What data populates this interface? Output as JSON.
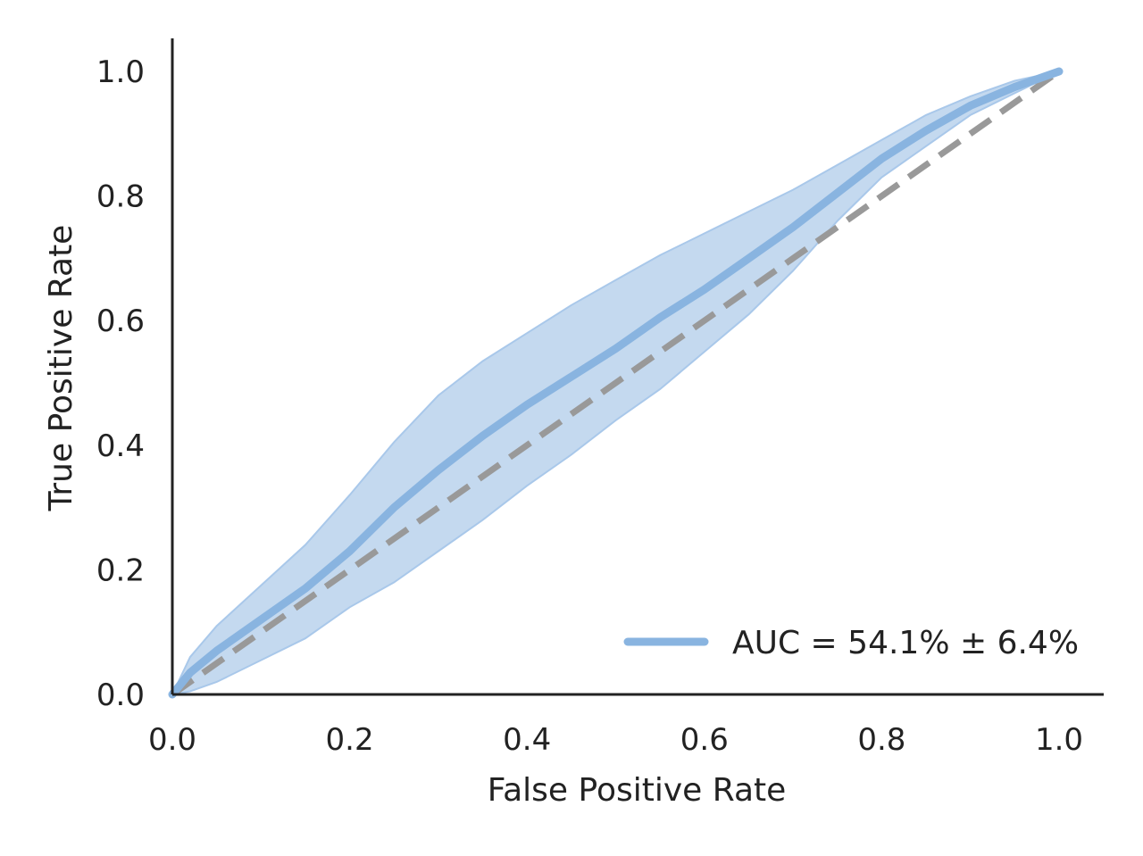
{
  "chart_data": {
    "type": "line",
    "title": "",
    "xlabel": "False Positive Rate",
    "ylabel": "True Positive Rate",
    "xlim": [
      0.0,
      1.05
    ],
    "ylim": [
      0.0,
      1.05
    ],
    "grid": false,
    "legend_position": "bottom-right",
    "x_ticks": [
      "0.0",
      "0.2",
      "0.4",
      "0.6",
      "0.8",
      "1.0"
    ],
    "y_ticks": [
      "0.0",
      "0.2",
      "0.4",
      "0.6",
      "0.8",
      "1.0"
    ],
    "series": [
      {
        "name": "AUC = 54.1% ± 6.4%",
        "color": "#89b4e0",
        "x": [
          0.0,
          0.02,
          0.05,
          0.1,
          0.15,
          0.2,
          0.25,
          0.3,
          0.35,
          0.4,
          0.45,
          0.5,
          0.55,
          0.6,
          0.65,
          0.7,
          0.75,
          0.8,
          0.85,
          0.9,
          0.95,
          1.0
        ],
        "y": [
          0.0,
          0.035,
          0.07,
          0.12,
          0.17,
          0.23,
          0.3,
          0.36,
          0.415,
          0.465,
          0.51,
          0.555,
          0.605,
          0.65,
          0.7,
          0.75,
          0.805,
          0.86,
          0.905,
          0.945,
          0.975,
          1.0
        ],
        "lower": [
          0.0,
          0.005,
          0.02,
          0.055,
          0.09,
          0.14,
          0.18,
          0.23,
          0.28,
          0.335,
          0.385,
          0.44,
          0.49,
          0.55,
          0.61,
          0.68,
          0.76,
          0.83,
          0.88,
          0.93,
          0.965,
          1.0
        ],
        "upper": [
          0.0,
          0.06,
          0.11,
          0.175,
          0.24,
          0.32,
          0.405,
          0.48,
          0.535,
          0.58,
          0.625,
          0.665,
          0.705,
          0.74,
          0.775,
          0.81,
          0.85,
          0.89,
          0.93,
          0.96,
          0.985,
          1.0
        ]
      },
      {
        "name": "",
        "style": "dashed",
        "color": "#999999",
        "x": [
          0.0,
          1.0
        ],
        "y": [
          0.0,
          1.0
        ]
      }
    ],
    "band_color": "#c4d9ef",
    "axis_color": "#222222"
  }
}
